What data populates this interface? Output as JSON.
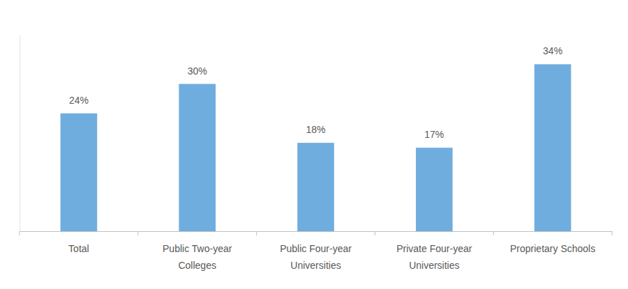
{
  "chart_data": {
    "type": "bar",
    "categories": [
      "Total",
      "Public Two-year Colleges",
      "Public Four-year Universities",
      "Private Four-year Universities",
      "Proprietary Schools"
    ],
    "values": [
      24,
      30,
      18,
      17,
      34
    ],
    "value_labels": [
      "24%",
      "30%",
      "18%",
      "17%",
      "34%"
    ],
    "color": "#70addf",
    "ylim": [
      0,
      40
    ],
    "data_labels": true,
    "tick_labels": "x",
    "grid": false
  }
}
